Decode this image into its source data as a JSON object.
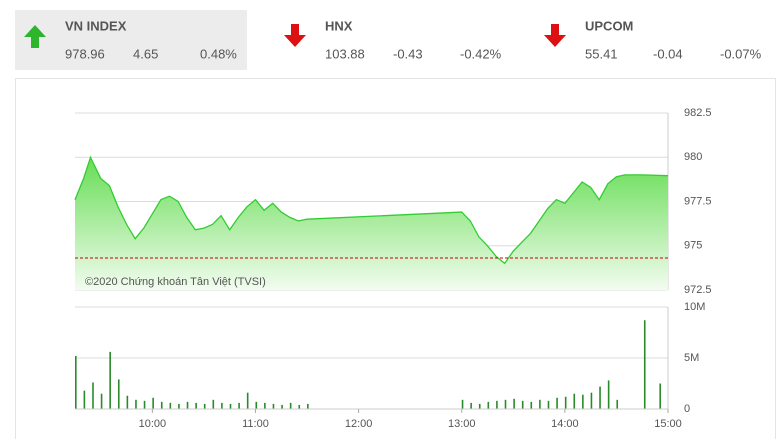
{
  "header": {
    "indices": [
      {
        "name": "VN INDEX",
        "value": "978.96",
        "change": "4.65",
        "percent": "0.48%",
        "direction": "up"
      },
      {
        "name": "HNX",
        "value": "103.88",
        "change": "-0.43",
        "percent": "-0.42%",
        "direction": "down"
      },
      {
        "name": "UPCOM",
        "value": "55.41",
        "change": "-0.04",
        "percent": "-0.07%",
        "direction": "down"
      }
    ]
  },
  "chart_data": [
    {
      "type": "area",
      "annotation": "©2020 Chứng khoán Tân Việt (TVSI)",
      "color": "#33cc33",
      "x": [
        "09:15",
        "09:20",
        "09:24",
        "09:30",
        "09:35",
        "09:40",
        "09:45",
        "09:50",
        "09:55",
        "10:00",
        "10:05",
        "10:10",
        "10:15",
        "10:20",
        "10:25",
        "10:30",
        "10:35",
        "10:40",
        "10:45",
        "10:50",
        "10:55",
        "11:00",
        "11:05",
        "11:10",
        "11:15",
        "11:20",
        "11:25",
        "11:30",
        "13:00",
        "13:05",
        "13:10",
        "13:15",
        "13:20",
        "13:25",
        "13:30",
        "13:35",
        "13:40",
        "13:45",
        "13:50",
        "13:55",
        "14:00",
        "14:05",
        "14:10",
        "14:15",
        "14:20",
        "14:25",
        "14:30",
        "14:35",
        "14:40",
        "14:45",
        "15:00"
      ],
      "values": [
        977.6,
        978.8,
        980.0,
        978.8,
        978.4,
        977.2,
        976.2,
        975.4,
        976.0,
        976.8,
        977.6,
        977.8,
        977.5,
        976.6,
        975.9,
        976.0,
        976.2,
        976.7,
        975.9,
        976.6,
        977.2,
        977.6,
        977.0,
        977.4,
        976.9,
        976.6,
        976.4,
        976.5,
        976.9,
        976.4,
        975.5,
        975.0,
        974.4,
        974.0,
        974.7,
        975.2,
        975.7,
        976.4,
        977.1,
        977.6,
        977.4,
        978.0,
        978.6,
        978.3,
        977.6,
        978.5,
        978.9,
        979.0,
        979.0,
        979.0,
        978.96
      ],
      "reference_line": {
        "value": 974.31,
        "color": "#cc0000"
      },
      "xlim": [
        "09:15",
        "15:00"
      ],
      "ylim": [
        972.5,
        982.5
      ],
      "yticks": [
        972.5,
        975,
        977.5,
        980,
        982.5
      ],
      "grid": true
    },
    {
      "type": "bar",
      "color": "#2a8a2a",
      "x": [
        "09:15",
        "09:20",
        "09:25",
        "09:30",
        "09:35",
        "09:40",
        "09:45",
        "09:50",
        "09:55",
        "10:00",
        "10:05",
        "10:10",
        "10:15",
        "10:20",
        "10:25",
        "10:30",
        "10:35",
        "10:40",
        "10:45",
        "10:50",
        "10:55",
        "11:00",
        "11:05",
        "11:10",
        "11:15",
        "11:20",
        "11:25",
        "11:30",
        "13:00",
        "13:05",
        "13:10",
        "13:15",
        "13:20",
        "13:25",
        "13:30",
        "13:35",
        "13:40",
        "13:45",
        "13:50",
        "13:55",
        "14:00",
        "14:05",
        "14:10",
        "14:15",
        "14:20",
        "14:25",
        "14:30",
        "14:46",
        "14:55"
      ],
      "values": [
        5200000,
        1800000,
        2600000,
        1500000,
        5600000,
        2900000,
        1300000,
        900000,
        800000,
        1100000,
        700000,
        600000,
        500000,
        700000,
        600000,
        500000,
        900000,
        600000,
        500000,
        600000,
        1600000,
        700000,
        600000,
        500000,
        400000,
        600000,
        400000,
        500000,
        900000,
        600000,
        500000,
        700000,
        800000,
        900000,
        1000000,
        800000,
        700000,
        900000,
        800000,
        1100000,
        1200000,
        1500000,
        1400000,
        1600000,
        2200000,
        2800000,
        900000,
        8700000,
        2500000
      ],
      "xlim": [
        "09:15",
        "15:00"
      ],
      "xticks": [
        "10:00",
        "11:00",
        "12:00",
        "13:00",
        "14:00",
        "15:00"
      ],
      "ylim": [
        0,
        10000000
      ],
      "yticks": [
        0,
        {
          "value": 5000000,
          "label": "5M"
        },
        {
          "value": 10000000,
          "label": "10M"
        }
      ],
      "grid": true
    }
  ]
}
